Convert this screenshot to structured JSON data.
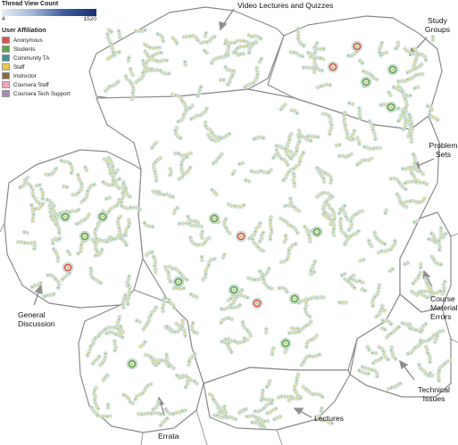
{
  "legend": {
    "title": "Thread View Count",
    "scale_min": "4",
    "scale_max": "1520",
    "affiliation_title": "User Affiliation",
    "items": [
      {
        "label": "Anonymous",
        "color": "#d9534f"
      },
      {
        "label": "Students",
        "color": "#5aa34a"
      },
      {
        "label": "Community TA",
        "color": "#3d8f9c"
      },
      {
        "label": "Staff",
        "color": "#e8c94a"
      },
      {
        "label": "Instructor",
        "color": "#8a6d3b"
      },
      {
        "label": "Coursera Staff",
        "color": "#f4a3b8"
      },
      {
        "label": "Coursera Tech Support",
        "color": "#a587b5"
      }
    ]
  },
  "regions": {
    "video": "Video Lectures and Quizzes",
    "study_groups": "Study Groups",
    "problem_sets": "Problem Sets",
    "general": "General Discussion",
    "course_material": "Course Material Errors",
    "technical": "Technical Issues",
    "errata": "Errata",
    "lectures": "Lectures"
  }
}
